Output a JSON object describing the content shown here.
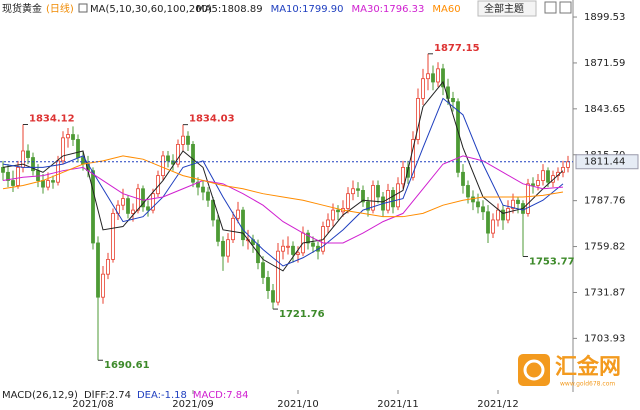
{
  "chart_data": {
    "type": "candlestick",
    "title": "现货黄金",
    "period": "(日线)",
    "indicator": "MA(5,10,30,60,100,200)",
    "theme_button": "全部主题",
    "macd_labels": [
      {
        "text": "MACD(26,12,9)",
        "color": "#222"
      },
      {
        "text": "DIFF:2.74",
        "color": "#222"
      },
      {
        "text": "DEA:-1.18",
        "color": "#1f3fbf"
      },
      {
        "text": "MACD:7.84",
        "color": "#d020d0"
      }
    ],
    "watermark": "汇金网",
    "watermark_url": "www.gold678.com",
    "ylim": [
      1672.5,
      1909.9
    ],
    "yticks": [
      1899.53,
      1871.59,
      1843.65,
      {
        "value": 1815.7,
        "label": "1815.70"
      },
      1787.76,
      1759.82,
      1731.87,
      1703.93
    ],
    "up_color": "#e8402f",
    "down_color": "#4d9a35",
    "categories": [
      null,
      null,
      null,
      null,
      null,
      null,
      null,
      null,
      null,
      null,
      null,
      null,
      null,
      null,
      null,
      null,
      null,
      null,
      "2021/08",
      null,
      null,
      null,
      null,
      null,
      null,
      null,
      null,
      null,
      null,
      null,
      null,
      null,
      null,
      null,
      null,
      null,
      null,
      null,
      "2021/09",
      null,
      null,
      null,
      null,
      null,
      null,
      null,
      null,
      null,
      null,
      null,
      null,
      null,
      null,
      null,
      null,
      null,
      null,
      null,
      null,
      "2021/10",
      null,
      null,
      null,
      null,
      null,
      null,
      null,
      null,
      null,
      null,
      null,
      null,
      null,
      null,
      null,
      null,
      null,
      null,
      null,
      "2021/11",
      null,
      null,
      null,
      null,
      null,
      null,
      null,
      null,
      null,
      null,
      null,
      null,
      null,
      null,
      null,
      null,
      null,
      null,
      null,
      "2021/12",
      null,
      null,
      null,
      null,
      null,
      null,
      null,
      null,
      null,
      null,
      null,
      null,
      null,
      null
    ],
    "candles": [
      [
        1808,
        1812,
        1800,
        1805
      ],
      [
        1805,
        1810,
        1796,
        1800
      ],
      [
        1800,
        1806,
        1793,
        1797
      ],
      [
        1797,
        1812,
        1795,
        1808
      ],
      [
        1808,
        1834.12,
        1805,
        1818
      ],
      [
        1818,
        1822,
        1810,
        1814
      ],
      [
        1814,
        1817,
        1803,
        1806
      ],
      [
        1806,
        1810,
        1796,
        1800
      ],
      [
        1800,
        1804,
        1792,
        1796
      ],
      [
        1796,
        1805,
        1794,
        1800
      ],
      [
        1800,
        1803,
        1795,
        1799
      ],
      [
        1799,
        1815,
        1797,
        1812
      ],
      [
        1812,
        1830,
        1810,
        1826
      ],
      [
        1826,
        1832,
        1820,
        1828
      ],
      [
        1828,
        1833,
        1821,
        1825
      ],
      [
        1825,
        1828,
        1811,
        1814
      ],
      [
        1814,
        1818,
        1806,
        1810
      ],
      [
        1810,
        1815,
        1802,
        1806
      ],
      [
        1806,
        1808,
        1758,
        1762
      ],
      [
        1762,
        1766,
        1690.61,
        1729
      ],
      [
        1729,
        1748,
        1725,
        1743
      ],
      [
        1743,
        1756,
        1740,
        1752
      ],
      [
        1752,
        1783,
        1750,
        1780
      ],
      [
        1780,
        1788,
        1776,
        1785
      ],
      [
        1785,
        1795,
        1782,
        1789
      ],
      [
        1789,
        1791,
        1777,
        1780
      ],
      [
        1780,
        1786,
        1775,
        1782
      ],
      [
        1782,
        1798,
        1780,
        1795
      ],
      [
        1795,
        1797,
        1781,
        1784
      ],
      [
        1784,
        1788,
        1778,
        1782
      ],
      [
        1782,
        1795,
        1780,
        1792
      ],
      [
        1792,
        1806,
        1790,
        1803
      ],
      [
        1803,
        1818,
        1800,
        1815
      ],
      [
        1815,
        1818,
        1808,
        1812
      ],
      [
        1812,
        1816,
        1806,
        1810
      ],
      [
        1810,
        1825,
        1808,
        1822
      ],
      [
        1822,
        1834.03,
        1818,
        1827
      ],
      [
        1827,
        1830,
        1818,
        1822
      ],
      [
        1822,
        1824,
        1796,
        1799
      ],
      [
        1799,
        1802,
        1791,
        1796
      ],
      [
        1796,
        1800,
        1788,
        1793
      ],
      [
        1793,
        1796,
        1784,
        1788
      ],
      [
        1788,
        1790,
        1772,
        1776
      ],
      [
        1776,
        1779,
        1760,
        1763
      ],
      [
        1763,
        1766,
        1745,
        1754
      ],
      [
        1754,
        1768,
        1750,
        1764
      ],
      [
        1764,
        1781,
        1762,
        1777
      ],
      [
        1777,
        1787,
        1774,
        1782
      ],
      [
        1782,
        1784,
        1760,
        1764
      ],
      [
        1764,
        1770,
        1758,
        1764
      ],
      [
        1764,
        1767,
        1756,
        1761
      ],
      [
        1761,
        1764,
        1746,
        1750
      ],
      [
        1750,
        1754,
        1737,
        1741
      ],
      [
        1741,
        1745,
        1728,
        1733
      ],
      [
        1733,
        1737,
        1721.76,
        1726
      ],
      [
        1726,
        1762,
        1724,
        1757
      ],
      [
        1757,
        1764,
        1752,
        1760
      ],
      [
        1760,
        1766,
        1755,
        1760
      ],
      [
        1760,
        1763,
        1750,
        1755
      ],
      [
        1755,
        1760,
        1750,
        1756
      ],
      [
        1756,
        1772,
        1754,
        1768
      ],
      [
        1768,
        1770,
        1758,
        1762
      ],
      [
        1762,
        1766,
        1756,
        1760
      ],
      [
        1760,
        1763,
        1752,
        1757
      ],
      [
        1757,
        1775,
        1755,
        1772
      ],
      [
        1772,
        1780,
        1768,
        1776
      ],
      [
        1776,
        1786,
        1772,
        1782
      ],
      [
        1782,
        1785,
        1776,
        1781
      ],
      [
        1781,
        1788,
        1778,
        1783
      ],
      [
        1783,
        1796,
        1780,
        1792
      ],
      [
        1792,
        1800,
        1788,
        1795
      ],
      [
        1795,
        1799,
        1790,
        1794
      ],
      [
        1794,
        1797,
        1784,
        1787
      ],
      [
        1787,
        1790,
        1778,
        1782
      ],
      [
        1782,
        1800,
        1780,
        1797
      ],
      [
        1797,
        1800,
        1786,
        1790
      ],
      [
        1790,
        1793,
        1778,
        1782
      ],
      [
        1782,
        1798,
        1780,
        1794
      ],
      [
        1794,
        1796,
        1780,
        1784
      ],
      [
        1784,
        1802,
        1782,
        1798
      ],
      [
        1798,
        1812,
        1795,
        1808
      ],
      [
        1808,
        1812,
        1798,
        1802
      ],
      [
        1802,
        1830,
        1800,
        1825
      ],
      [
        1825,
        1856,
        1822,
        1850
      ],
      [
        1850,
        1868,
        1846,
        1862
      ],
      [
        1862,
        1877.15,
        1855,
        1865
      ],
      [
        1865,
        1870,
        1855,
        1860
      ],
      [
        1860,
        1872,
        1857,
        1868
      ],
      [
        1868,
        1871,
        1852,
        1857
      ],
      [
        1857,
        1862,
        1846,
        1850
      ],
      [
        1850,
        1854,
        1842,
        1848
      ],
      [
        1848,
        1850,
        1802,
        1805
      ],
      [
        1805,
        1810,
        1792,
        1797
      ],
      [
        1797,
        1800,
        1786,
        1790
      ],
      [
        1790,
        1794,
        1782,
        1787
      ],
      [
        1787,
        1792,
        1780,
        1784
      ],
      [
        1784,
        1788,
        1776,
        1781
      ],
      [
        1781,
        1785,
        1762,
        1768
      ],
      [
        1768,
        1780,
        1765,
        1776
      ],
      [
        1776,
        1786,
        1772,
        1782
      ],
      [
        1782,
        1785,
        1770,
        1776
      ],
      [
        1776,
        1788,
        1774,
        1783
      ],
      [
        1783,
        1792,
        1780,
        1788
      ],
      [
        1788,
        1790,
        1780,
        1786
      ],
      [
        1786,
        1788,
        1753.77,
        1780
      ],
      [
        1780,
        1801,
        1778,
        1798
      ],
      [
        1798,
        1802,
        1792,
        1797
      ],
      [
        1797,
        1804,
        1794,
        1800
      ],
      [
        1800,
        1810,
        1797,
        1806
      ],
      [
        1806,
        1808,
        1796,
        1799
      ],
      [
        1799,
        1806,
        1796,
        1803
      ],
      [
        1803,
        1808,
        1800,
        1805
      ],
      [
        1805,
        1812,
        1802,
        1808
      ],
      [
        1808,
        1815,
        1805,
        1811.44
      ]
    ],
    "ma": {
      "x": [
        0,
        4,
        8,
        12,
        16,
        20,
        24,
        28,
        32,
        36,
        40,
        44,
        48,
        52,
        56,
        60,
        64,
        68,
        72,
        76,
        80,
        84,
        88,
        92,
        96,
        100,
        104,
        108,
        112
      ],
      "series": [
        {
          "label": "MA5:1808.89",
          "color": "#222222",
          "values": [
            1808,
            1810,
            1805,
            1815,
            1818,
            1770,
            1772,
            1786,
            1800,
            1818,
            1808,
            1770,
            1768,
            1752,
            1745,
            1762,
            1764,
            1779,
            1788,
            1787,
            1794,
            1845,
            1860,
            1820,
            1790,
            1780,
            1783,
            1795,
            1806
          ]
        },
        {
          "label": "MA10:1799.90",
          "color": "#1f3fbf",
          "values": [
            1810,
            1808,
            1808,
            1810,
            1815,
            1795,
            1775,
            1778,
            1790,
            1808,
            1812,
            1790,
            1770,
            1758,
            1748,
            1753,
            1760,
            1770,
            1782,
            1786,
            1789,
            1820,
            1850,
            1840,
            1810,
            1785,
            1782,
            1788,
            1798
          ]
        },
        {
          "label": "MA30:1796.33",
          "color": "#d020d0",
          "values": [
            1800,
            1802,
            1803,
            1806,
            1808,
            1800,
            1792,
            1788,
            1790,
            1795,
            1800,
            1798,
            1792,
            1785,
            1775,
            1768,
            1762,
            1762,
            1768,
            1775,
            1780,
            1795,
            1810,
            1815,
            1812,
            1805,
            1798,
            1795,
            1796
          ]
        },
        {
          "label": "MA60",
          "color": "#ff8c00",
          "values": [
            1795,
            1797,
            1800,
            1805,
            1810,
            1812,
            1815,
            1813,
            1808,
            1803,
            1800,
            1797,
            1795,
            1792,
            1790,
            1788,
            1785,
            1782,
            1780,
            1778,
            1778,
            1780,
            1785,
            1788,
            1790,
            1790,
            1790,
            1791,
            1793
          ]
        }
      ]
    }
  }
}
